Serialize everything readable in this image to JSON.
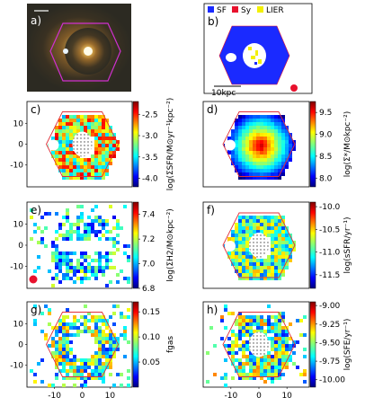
{
  "chart_data": [
    {
      "type": "heatmap",
      "label": "a)",
      "content": "optical image",
      "hexagon": true,
      "scalebar": ""
    },
    {
      "type": "heatmap",
      "label": "b)",
      "content": "BPT classification map",
      "legend": [
        "SF",
        "Sy",
        "LIER"
      ],
      "legend_colors": [
        "#1a2aff",
        "#e8112d",
        "#f3f000"
      ],
      "scalebar": "10kpc"
    },
    {
      "type": "heatmap",
      "label": "c)",
      "ylabel": "log(ΣSFR/M⊙yr⁻¹kpc⁻²)",
      "colorbar_ticks": [
        -2.5,
        -3.0,
        -3.5,
        -4.0
      ],
      "colorbar_range": [
        -4.2,
        -2.2
      ],
      "yticks": [
        10,
        0,
        -10
      ]
    },
    {
      "type": "heatmap",
      "label": "d)",
      "ylabel": "log(Σ*/M⊙kpc⁻²)",
      "colorbar_ticks": [
        9.5,
        9.0,
        8.5,
        8.0
      ],
      "colorbar_range": [
        7.8,
        9.75
      ]
    },
    {
      "type": "heatmap",
      "label": "e)",
      "ylabel": "log(ΣH2/M⊙kpc⁻²)",
      "colorbar_ticks": [
        7.4,
        7.2,
        7.0,
        6.8
      ],
      "colorbar_range": [
        6.8,
        7.5
      ],
      "yticks": [
        10,
        0,
        -10
      ]
    },
    {
      "type": "heatmap",
      "label": "f)",
      "ylabel": "log(sSFR/yr⁻¹)",
      "colorbar_ticks": [
        -10.0,
        -10.5,
        -11.0,
        -11.5
      ],
      "colorbar_range": [
        -11.8,
        -9.9
      ]
    },
    {
      "type": "heatmap",
      "label": "g)",
      "ylabel": "fgas",
      "colorbar_ticks": [
        0.15,
        0.1,
        0.05
      ],
      "colorbar_range": [
        0.0,
        0.17
      ],
      "yticks": [
        10,
        0,
        -10
      ],
      "xticks": [
        -10,
        0,
        10
      ]
    },
    {
      "type": "heatmap",
      "label": "h)",
      "ylabel": "log(SFE/yr⁻¹)",
      "colorbar_ticks": [
        -9.0,
        -9.25,
        -9.5,
        -9.75,
        -10.0
      ],
      "colorbar_range": [
        -10.1,
        -8.95
      ],
      "xticks": [
        -10,
        0,
        10
      ]
    }
  ],
  "labels": {
    "a": "a)",
    "b": "b)",
    "c": "c)",
    "d": "d)",
    "e": "e)",
    "f": "f)",
    "g": "g)",
    "h": "h)",
    "sf": "SF",
    "sy": "Sy",
    "lier": "LIER",
    "scale": "10kpc"
  }
}
